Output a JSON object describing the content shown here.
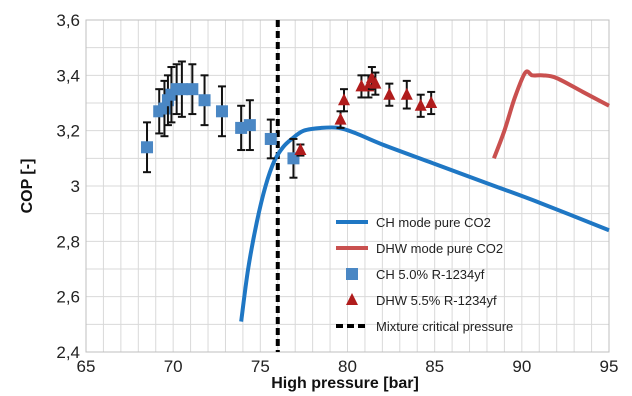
{
  "chart_data": {
    "type": "scatter",
    "xlabel": "High pressure [bar]",
    "ylabel": "COP [-]",
    "xlim": [
      65,
      95
    ],
    "ylim": [
      2.4,
      3.6
    ],
    "grid": true,
    "legend_placement": "bottom-right",
    "x_ticks": [
      {
        "value": 65,
        "label": "65"
      },
      {
        "value": 70,
        "label": "70"
      },
      {
        "value": 75,
        "label": "75"
      },
      {
        "value": 80,
        "label": "80"
      },
      {
        "value": 85,
        "label": "85"
      },
      {
        "value": 90,
        "label": "90"
      },
      {
        "value": 95,
        "label": "95"
      }
    ],
    "y_ticks": [
      {
        "value": 2.4,
        "label": "2,4"
      },
      {
        "value": 2.6,
        "label": "2,6"
      },
      {
        "value": 2.8,
        "label": "2,8"
      },
      {
        "value": 3.0,
        "label": "3"
      },
      {
        "value": 3.2,
        "label": "3,2"
      },
      {
        "value": 3.4,
        "label": "3,4"
      },
      {
        "value": 3.6,
        "label": "3,6"
      }
    ],
    "series": [
      {
        "name": "CH mode pure CO2",
        "kind": "line",
        "color": "#1f77c4",
        "points": [
          [
            73.9,
            2.51
          ],
          [
            74.3,
            2.7
          ],
          [
            74.8,
            2.87
          ],
          [
            75.3,
            3.0
          ],
          [
            75.8,
            3.09
          ],
          [
            76.3,
            3.14
          ],
          [
            76.8,
            3.17
          ],
          [
            77.5,
            3.2
          ],
          [
            78.5,
            3.21
          ],
          [
            79.5,
            3.21
          ],
          [
            80.5,
            3.19
          ],
          [
            82.0,
            3.15
          ],
          [
            85.0,
            3.08
          ],
          [
            88.0,
            3.01
          ],
          [
            91.0,
            2.94
          ],
          [
            95.0,
            2.84
          ]
        ]
      },
      {
        "name": "DHW mode pure CO2",
        "kind": "line",
        "color": "#c9504f",
        "points": [
          [
            88.4,
            3.1
          ],
          [
            89.0,
            3.2
          ],
          [
            89.6,
            3.32
          ],
          [
            90.2,
            3.41
          ],
          [
            90.6,
            3.4
          ],
          [
            91.2,
            3.4
          ],
          [
            92.0,
            3.39
          ],
          [
            93.5,
            3.34
          ],
          [
            95.0,
            3.29
          ]
        ]
      },
      {
        "name": "CH 5.0% R-1234yf",
        "kind": "square",
        "color": "#4a87c4",
        "points": [
          {
            "x": 68.5,
            "y": 3.14,
            "err": 0.09
          },
          {
            "x": 69.2,
            "y": 3.27,
            "err": 0.08
          },
          {
            "x": 69.5,
            "y": 3.28,
            "err": 0.1
          },
          {
            "x": 69.7,
            "y": 3.31,
            "err": 0.09
          },
          {
            "x": 69.9,
            "y": 3.33,
            "err": 0.1
          },
          {
            "x": 70.2,
            "y": 3.35,
            "err": 0.09
          },
          {
            "x": 70.5,
            "y": 3.35,
            "err": 0.1
          },
          {
            "x": 71.1,
            "y": 3.35,
            "err": 0.09
          },
          {
            "x": 71.8,
            "y": 3.31,
            "err": 0.09
          },
          {
            "x": 72.8,
            "y": 3.27,
            "err": 0.09
          },
          {
            "x": 73.9,
            "y": 3.21,
            "err": 0.08
          },
          {
            "x": 74.4,
            "y": 3.22,
            "err": 0.09
          },
          {
            "x": 75.6,
            "y": 3.17,
            "err": 0.07
          },
          {
            "x": 76.9,
            "y": 3.1,
            "err": 0.07
          }
        ]
      },
      {
        "name": "DHW 5.5% R-1234yf",
        "kind": "triangle",
        "color": "#b01c1c",
        "points": [
          {
            "x": 77.3,
            "y": 3.13,
            "err": 0.02
          },
          {
            "x": 79.6,
            "y": 3.24,
            "err": 0.03
          },
          {
            "x": 79.8,
            "y": 3.31,
            "err": 0.04
          },
          {
            "x": 80.8,
            "y": 3.36,
            "err": 0.04
          },
          {
            "x": 81.2,
            "y": 3.36,
            "err": 0.04
          },
          {
            "x": 81.4,
            "y": 3.39,
            "err": 0.04
          },
          {
            "x": 81.6,
            "y": 3.37,
            "err": 0.04
          },
          {
            "x": 82.4,
            "y": 3.33,
            "err": 0.04
          },
          {
            "x": 83.4,
            "y": 3.33,
            "err": 0.05
          },
          {
            "x": 84.2,
            "y": 3.29,
            "err": 0.04
          },
          {
            "x": 84.8,
            "y": 3.3,
            "err": 0.04
          }
        ]
      },
      {
        "name": "Mixture critical pressure",
        "kind": "vline",
        "color": "#000000",
        "x": 76.0
      }
    ]
  }
}
